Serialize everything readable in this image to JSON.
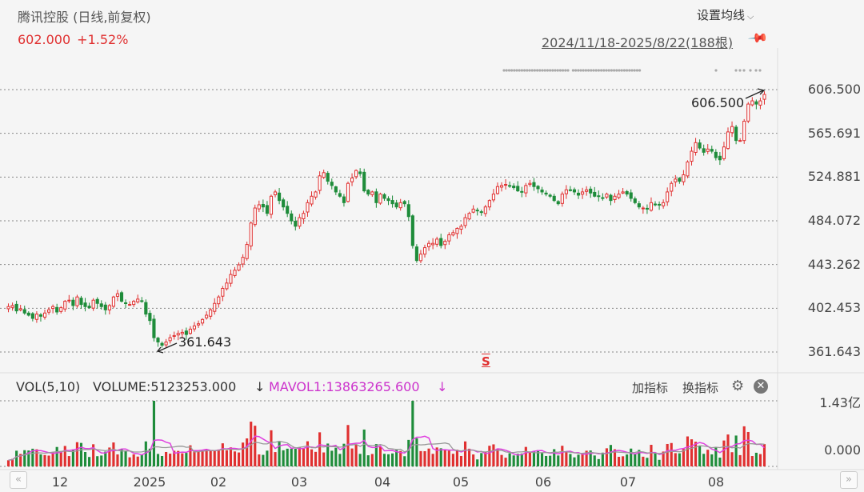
{
  "header": {
    "title": "腾讯控股 (日线,前复权)",
    "price": "602.000",
    "change": "+1.52%",
    "ma_settings": "设置均线",
    "date_range": "2024/11/18-2025/8/22(188根)"
  },
  "price_axis": [
    "606.500",
    "565.691",
    "524.881",
    "484.072",
    "443.262",
    "402.453",
    "361.643"
  ],
  "annotations": {
    "high": "606.500",
    "low": "361.643",
    "signal": "S"
  },
  "volume_header": {
    "name": "VOL(5,10)",
    "volume": "VOLUME:5123253.000",
    "arrow": "↓",
    "mavol": "MAVOL1:13863265.600",
    "mavol_arrow": "↓"
  },
  "volume_axis": [
    "1.43亿",
    "0.000"
  ],
  "indicator_buttons": {
    "add": "加指标",
    "switch": "换指标"
  },
  "x_axis": [
    "12",
    "2025",
    "02",
    "03",
    "04",
    "05",
    "06",
    "07",
    "08"
  ],
  "colors": {
    "up": "#e03030",
    "down": "#1e8c3a",
    "ma5": "#e040e0",
    "ma10": "#999999",
    "grid": "#888888"
  },
  "icons": {
    "ma_chevron": "chevron-down-icon",
    "pin": "pin-icon",
    "gear": "gear-icon",
    "close": "close-icon",
    "nav_left": "chevron-left-icon",
    "nav_right": "chevron-right-icon"
  },
  "chart_data": {
    "type": "candlestick",
    "title": "腾讯控股 (日线,前复权)",
    "period": "2024/11/18-2025/8/22",
    "bar_count": 188,
    "ylim": [
      361.643,
      606.5
    ],
    "y_ticks": [
      606.5,
      565.691,
      524.881,
      484.072,
      443.262,
      402.453,
      361.643
    ],
    "x_ticks": [
      "12",
      "2025",
      "02",
      "03",
      "04",
      "05",
      "06",
      "07",
      "08"
    ],
    "highest": 606.5,
    "lowest": 361.643,
    "last_close": 602.0,
    "change_pct": 1.52,
    "approx_closes": [
      404,
      405,
      400,
      402,
      398,
      396,
      393,
      397,
      395,
      398,
      401,
      404,
      399,
      403,
      409,
      410,
      405,
      413,
      406,
      404,
      403,
      410,
      407,
      404,
      401,
      405,
      413,
      416,
      409,
      407,
      406,
      409,
      411,
      409,
      397,
      391,
      375,
      371,
      368,
      371,
      375,
      377,
      379,
      380,
      378,
      383,
      386,
      388,
      392,
      396,
      401,
      407,
      413,
      421,
      426,
      434,
      438,
      443,
      450,
      462,
      482,
      496,
      499,
      497,
      491,
      507,
      511,
      503,
      497,
      491,
      484,
      479,
      487,
      491,
      501,
      507,
      511,
      526,
      529,
      521,
      517,
      511,
      507,
      501,
      519,
      524,
      531,
      528,
      512,
      509,
      511,
      501,
      509,
      505,
      503,
      500,
      497,
      501,
      500,
      488,
      461,
      447,
      453,
      459,
      463,
      463,
      467,
      461,
      465,
      471,
      473,
      477,
      479,
      487,
      491,
      495,
      494,
      492,
      497,
      503,
      509,
      516,
      517,
      518,
      517,
      515,
      512,
      511,
      517,
      519,
      516,
      514,
      511,
      509,
      507,
      503,
      500,
      509,
      513,
      513,
      511,
      508,
      511,
      513,
      510,
      507,
      507,
      505,
      509,
      503,
      507,
      509,
      511,
      509,
      505,
      501,
      497,
      496,
      495,
      501,
      499,
      499,
      501,
      511,
      519,
      523,
      521,
      527,
      539,
      549,
      557,
      552,
      548,
      551,
      549,
      543,
      541,
      553,
      567,
      572,
      559,
      559,
      577,
      593,
      596,
      593,
      596,
      602
    ],
    "volume_ylim": [
      0,
      143000000
    ],
    "volume_last": 5123253,
    "mavol1_last": 13863265.6
  }
}
